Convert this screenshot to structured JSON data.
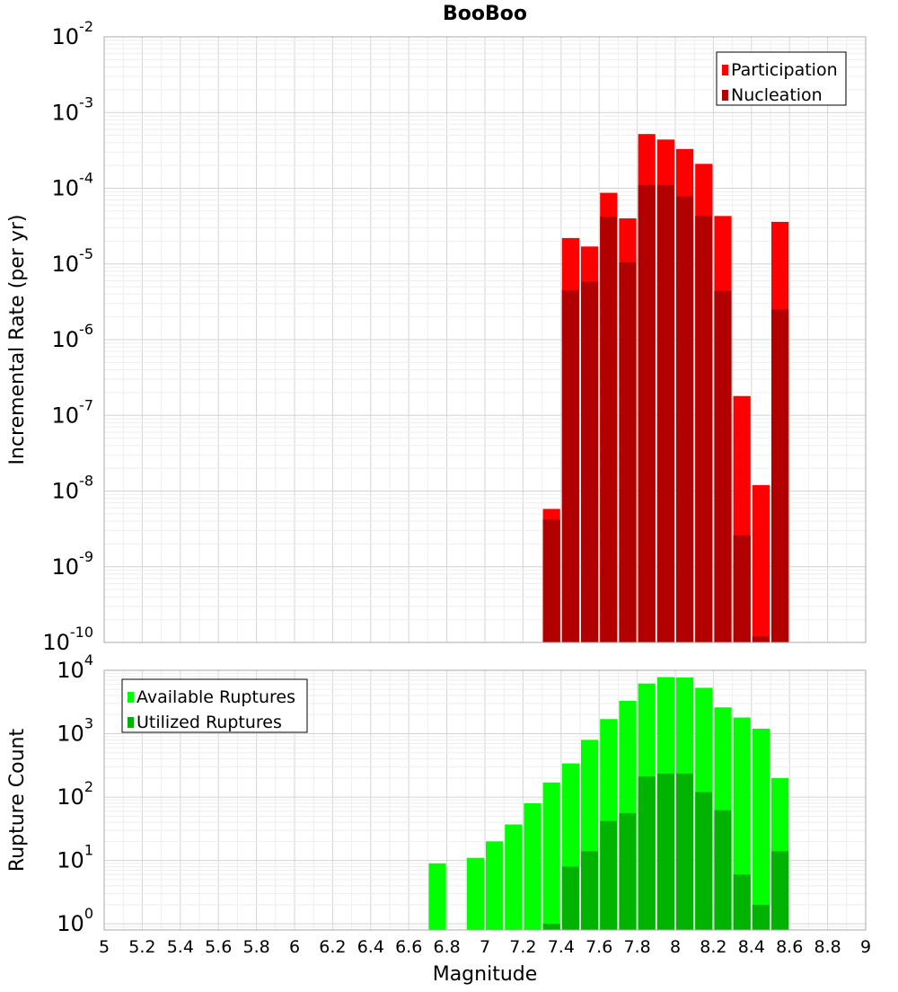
{
  "chart_data": {
    "title": "BooBoo",
    "xlabel": "Magnitude",
    "xlim": [
      5,
      9
    ],
    "xticks": [
      "5",
      "5.2",
      "5.4",
      "5.6",
      "5.8",
      "6",
      "6.2",
      "6.4",
      "6.6",
      "6.8",
      "7",
      "7.2",
      "7.4",
      "7.6",
      "7.8",
      "8",
      "8.2",
      "8.4",
      "8.6",
      "8.8",
      "9"
    ],
    "bin_width": 0.1,
    "panels": [
      {
        "type": "bar",
        "ylabel": "Incremental Rate (per yr)",
        "yscale": "log",
        "ylim": [
          1e-10,
          0.01
        ],
        "yticks": [
          {
            "base": "10",
            "exp": "-2"
          },
          {
            "base": "10",
            "exp": "-3"
          },
          {
            "base": "10",
            "exp": "-4"
          },
          {
            "base": "10",
            "exp": "-5"
          },
          {
            "base": "10",
            "exp": "-6"
          },
          {
            "base": "10",
            "exp": "-7"
          },
          {
            "base": "10",
            "exp": "-8"
          },
          {
            "base": "10",
            "exp": "-9"
          },
          {
            "base": "10",
            "exp": "-10"
          }
        ],
        "legend": {
          "position": "top-right"
        },
        "x": [
          7.35,
          7.45,
          7.55,
          7.65,
          7.75,
          7.85,
          7.95,
          8.05,
          8.15,
          8.25,
          8.35,
          8.45,
          8.55
        ],
        "series": [
          {
            "name": "Participation",
            "color": "#ff0000",
            "values": [
              5.8e-09,
              2.2e-05,
              1.7e-05,
              8.7e-05,
              4e-05,
              0.00052,
              0.00044,
              0.00033,
              0.00021,
              4.3e-05,
              1.8e-07,
              1.2e-08,
              3.6e-05
            ]
          },
          {
            "name": "Nucleation",
            "color": "#b20000",
            "values": [
              4.2e-09,
              4.5e-06,
              5.8e-06,
              4.2e-05,
              1.05e-05,
              0.00011,
              0.00011,
              7.8e-05,
              4.3e-05,
              4.4e-06,
              2.6e-09,
              1.2e-10,
              2.5e-06
            ]
          }
        ]
      },
      {
        "type": "bar",
        "ylabel": "Rupture Count",
        "yscale": "log",
        "ylim": [
          0.8,
          10000
        ],
        "yticks": [
          {
            "base": "10",
            "exp": "4",
            "value": 10000
          },
          {
            "base": "10",
            "exp": "3",
            "value": 1000
          },
          {
            "base": "10",
            "exp": "2",
            "value": 100
          },
          {
            "base": "10",
            "exp": "1",
            "value": 10
          },
          {
            "base": "10",
            "exp": "0",
            "value": 1
          }
        ],
        "legend": {
          "position": "top-left"
        },
        "x": [
          6.75,
          6.95,
          7.05,
          7.15,
          7.25,
          7.35,
          7.45,
          7.55,
          7.65,
          7.75,
          7.85,
          7.95,
          8.05,
          8.15,
          8.25,
          8.35,
          8.45,
          8.55
        ],
        "series": [
          {
            "name": "Available Ruptures",
            "color": "#00ff00",
            "values": [
              9,
              11,
              20,
              37,
              80,
              170,
              340,
              800,
              1700,
              3300,
              6200,
              7800,
              7700,
              5300,
              2600,
              1800,
              1200,
              200
            ]
          },
          {
            "name": "Utilized Ruptures",
            "color": "#00b300",
            "values": [
              null,
              null,
              null,
              null,
              null,
              1,
              8,
              14,
              42,
              56,
              210,
              235,
              235,
              120,
              62,
              6,
              2,
              14
            ]
          }
        ]
      }
    ]
  }
}
